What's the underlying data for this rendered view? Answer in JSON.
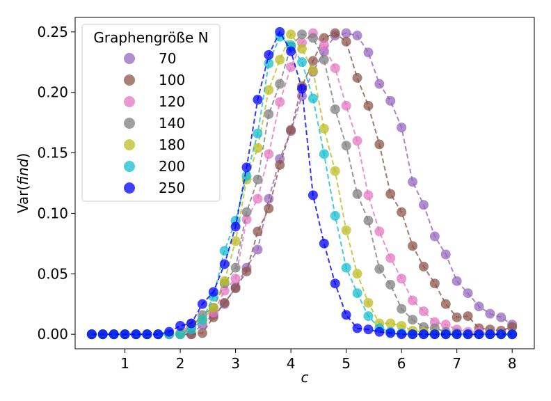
{
  "chart_data": {
    "type": "line",
    "xlabel": "c",
    "ylabel_prefix": "Var(",
    "ylabel_italic": "find",
    "ylabel_suffix": ")",
    "xlim": [
      0.1,
      8.4
    ],
    "ylim": [
      -0.012,
      0.262
    ],
    "xticks": [
      1,
      2,
      3,
      4,
      5,
      6,
      7,
      8
    ],
    "yticks": [
      0.0,
      0.05,
      0.1,
      0.15,
      0.2,
      0.25
    ],
    "xtick_labels": [
      "1",
      "2",
      "3",
      "4",
      "5",
      "6",
      "7",
      "8"
    ],
    "ytick_labels": [
      "0.00",
      "0.05",
      "0.10",
      "0.15",
      "0.20",
      "0.25"
    ],
    "grid": false,
    "legend": {
      "title": "Graphengröße N",
      "placement": "top-left"
    },
    "x": [
      0.4,
      0.6,
      0.8,
      1.0,
      1.2,
      1.4,
      1.6,
      1.8,
      2.0,
      2.2,
      2.4,
      2.6,
      2.8,
      3.0,
      3.2,
      3.4,
      3.6,
      3.8,
      4.0,
      4.2,
      4.4,
      4.6,
      4.8,
      5.0,
      5.2,
      5.4,
      5.6,
      5.8,
      6.0,
      6.2,
      6.4,
      6.6,
      6.8,
      7.0,
      7.2,
      7.4,
      7.6,
      7.8,
      8.0
    ],
    "series": [
      {
        "name": "70",
        "color": "#9467bd",
        "values": [
          0.0,
          0.0,
          0.0,
          0.0,
          0.0,
          0.0,
          0.0,
          0.0,
          0.0,
          0.0,
          0.008,
          0.016,
          0.025,
          0.039,
          0.055,
          0.07,
          0.112,
          0.145,
          0.168,
          0.197,
          0.217,
          0.234,
          0.247,
          0.249,
          0.247,
          0.233,
          0.207,
          0.193,
          0.171,
          0.126,
          0.107,
          0.081,
          0.066,
          0.044,
          0.034,
          0.023,
          0.017,
          0.014,
          0.008
        ]
      },
      {
        "name": "100",
        "color": "#8c564b",
        "values": [
          0.0,
          0.0,
          0.0,
          0.0,
          0.0,
          0.0,
          0.0,
          0.0,
          0.0,
          0.0,
          0.001,
          0.014,
          0.026,
          0.038,
          0.052,
          0.085,
          0.104,
          0.14,
          0.169,
          0.205,
          0.226,
          0.245,
          0.249,
          0.242,
          0.212,
          0.189,
          0.157,
          0.116,
          0.101,
          0.073,
          0.056,
          0.042,
          0.025,
          0.014,
          0.015,
          0.005,
          0.004,
          0.003,
          0.006
        ]
      },
      {
        "name": "120",
        "color": "#e377c2",
        "values": [
          0.0,
          0.0,
          0.0,
          0.0,
          0.0,
          0.0,
          0.0,
          0.0,
          0.001,
          0.009,
          0.012,
          0.018,
          0.036,
          0.046,
          0.095,
          0.112,
          0.149,
          0.192,
          0.221,
          0.241,
          0.249,
          0.239,
          0.22,
          0.189,
          0.16,
          0.115,
          0.085,
          0.063,
          0.046,
          0.028,
          0.019,
          0.01,
          0.008,
          0.004,
          0.002,
          0.002,
          0.0,
          0.0,
          0.0
        ]
      },
      {
        "name": "140",
        "color": "#7f7f7f",
        "values": [
          0.0,
          0.0,
          0.0,
          0.0,
          0.0,
          0.0,
          0.0,
          0.0,
          0.0,
          0.006,
          0.016,
          0.022,
          0.042,
          0.055,
          0.101,
          0.128,
          0.182,
          0.207,
          0.238,
          0.248,
          0.245,
          0.227,
          0.186,
          0.156,
          0.116,
          0.094,
          0.054,
          0.041,
          0.021,
          0.012,
          0.006,
          0.005,
          0.002,
          0.001,
          0.0,
          0.0,
          0.0,
          0.0,
          0.0
        ]
      },
      {
        "name": "180",
        "color": "#bcbd22",
        "values": [
          0.0,
          0.0,
          0.0,
          0.0,
          0.0,
          0.0,
          0.0,
          0.0,
          0.0,
          0.008,
          0.012,
          0.022,
          0.044,
          0.077,
          0.128,
          0.154,
          0.202,
          0.227,
          0.248,
          0.236,
          0.218,
          0.17,
          0.135,
          0.086,
          0.05,
          0.026,
          0.009,
          0.009,
          0.007,
          0.003,
          0.002,
          0.001,
          0.0,
          0.0,
          0.0,
          0.0,
          0.0,
          0.0,
          0.0
        ]
      },
      {
        "name": "200",
        "color": "#17becf",
        "values": [
          0.0,
          0.0,
          0.0,
          0.0,
          0.0,
          0.0,
          0.0,
          0.0,
          0.0,
          0.004,
          0.012,
          0.031,
          0.069,
          0.094,
          0.131,
          0.166,
          0.224,
          0.246,
          0.239,
          0.225,
          0.195,
          0.149,
          0.098,
          0.055,
          0.034,
          0.015,
          0.005,
          0.002,
          0.001,
          0.0,
          0.0,
          0.0,
          0.0,
          0.0,
          0.0,
          0.0,
          0.0,
          0.0,
          0.0
        ]
      },
      {
        "name": "250",
        "color": "#0000ff",
        "values": [
          0.0,
          0.0,
          0.0,
          0.0,
          0.0,
          0.0,
          0.0,
          0.002,
          0.007,
          0.009,
          0.025,
          0.035,
          0.058,
          0.089,
          0.138,
          0.194,
          0.231,
          0.25,
          0.234,
          0.203,
          0.115,
          0.075,
          0.042,
          0.016,
          0.005,
          0.004,
          0.002,
          0.001,
          0.0,
          0.0,
          0.0,
          0.0,
          0.0,
          0.0,
          0.0,
          0.0,
          0.0,
          0.0,
          0.0
        ]
      }
    ]
  }
}
